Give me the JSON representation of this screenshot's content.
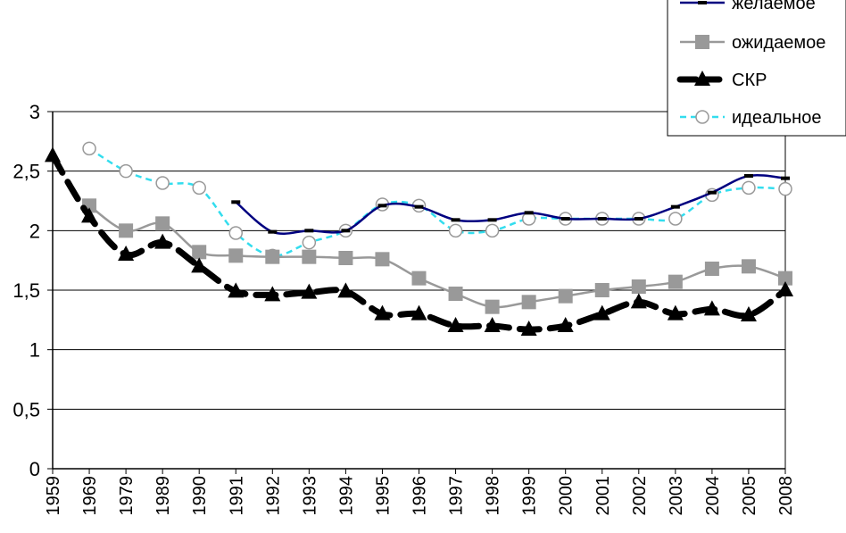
{
  "chart_data": {
    "type": "line",
    "x": [
      "1959",
      "1969",
      "1979",
      "1989",
      "1990",
      "1991",
      "1992",
      "1993",
      "1994",
      "1995",
      "1996",
      "1997",
      "1998",
      "1999",
      "2000",
      "2001",
      "2002",
      "2003",
      "2004",
      "2005",
      "2008"
    ],
    "ylim": [
      0,
      3
    ],
    "yticks": [
      0,
      0.5,
      1,
      1.5,
      2,
      2.5,
      3
    ],
    "ytick_labels": [
      "0",
      "0,5",
      "1",
      "1,5",
      "2",
      "2,5",
      "3"
    ],
    "grid": "horizontal",
    "legend_position": "top-right",
    "series": [
      {
        "name": "желаемое",
        "color": "#000080",
        "style": "solid",
        "marker": "dash",
        "values": [
          null,
          null,
          null,
          null,
          null,
          2.24,
          1.99,
          2.0,
          2.0,
          2.21,
          2.2,
          2.09,
          2.09,
          2.15,
          2.1,
          2.1,
          2.1,
          2.2,
          2.32,
          2.46,
          2.44
        ]
      },
      {
        "name": "ожидаемое",
        "color": "#999999",
        "style": "solid",
        "marker": "square",
        "values": [
          null,
          2.21,
          2.0,
          2.06,
          1.82,
          1.79,
          1.78,
          1.78,
          1.77,
          1.76,
          1.6,
          1.47,
          1.36,
          1.4,
          1.45,
          1.5,
          1.53,
          1.57,
          1.68,
          1.7,
          1.6
        ]
      },
      {
        "name": "СКР",
        "color": "#000000",
        "style": "dashed-bold",
        "marker": "triangle",
        "values": [
          2.63,
          2.12,
          1.8,
          1.9,
          1.7,
          1.49,
          1.46,
          1.48,
          1.49,
          1.3,
          1.3,
          1.2,
          1.2,
          1.17,
          1.2,
          1.3,
          1.4,
          1.3,
          1.34,
          1.29,
          1.5
        ]
      },
      {
        "name": "идеальное",
        "color": "#33ddee",
        "style": "dashed",
        "marker": "circle",
        "values": [
          null,
          2.69,
          2.5,
          2.4,
          2.36,
          1.98,
          1.79,
          1.9,
          2.0,
          2.22,
          2.21,
          2.0,
          2.0,
          2.1,
          2.1,
          2.1,
          2.1,
          2.1,
          2.3,
          2.36,
          2.35
        ]
      }
    ]
  }
}
